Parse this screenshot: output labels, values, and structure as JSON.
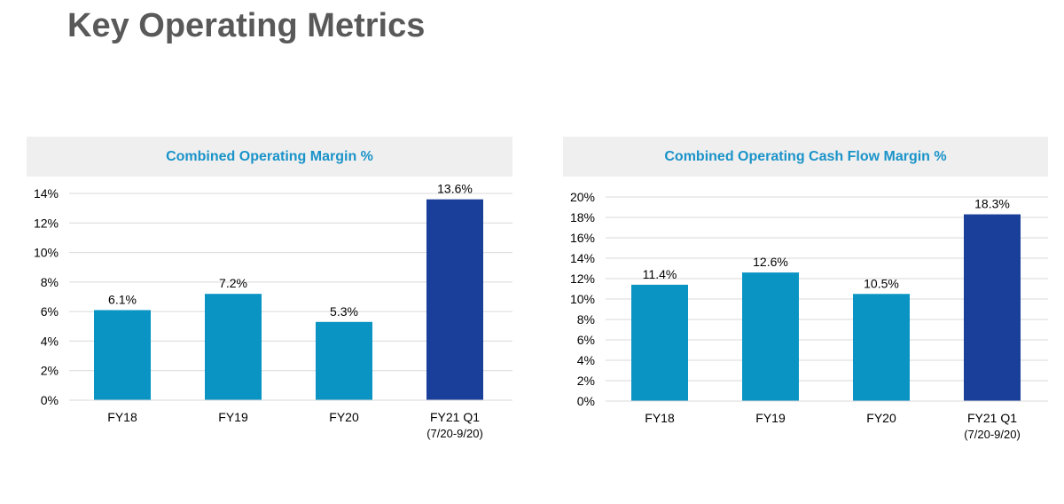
{
  "page": {
    "title": "Key Operating Metrics"
  },
  "colors": {
    "bar": "#0a94c4",
    "highlight": "#1a3f9a",
    "grid": "#d9d9d9",
    "header_bg": "#efefef",
    "header_text": "#1a93c9"
  },
  "chart_data": [
    {
      "type": "bar",
      "title": "Combined Operating Margin %",
      "categories": [
        "FY18",
        "FY19",
        "FY20",
        "FY21 Q1\n(7/20-9/20)"
      ],
      "values": [
        6.1,
        7.2,
        5.3,
        13.6
      ],
      "value_labels": [
        "6.1%",
        "7.2%",
        "5.3%",
        "13.6%"
      ],
      "ylim": [
        0,
        14
      ],
      "yticks": [
        "0%",
        "2%",
        "4%",
        "6%",
        "8%",
        "10%",
        "12%",
        "14%"
      ],
      "ytick_values": [
        0,
        2,
        4,
        6,
        8,
        10,
        12,
        14
      ],
      "highlight_index": 3,
      "grid": true
    },
    {
      "type": "bar",
      "title": "Combined Operating Cash Flow Margin %",
      "categories": [
        "FY18",
        "FY19",
        "FY20",
        "FY21 Q1\n(7/20-9/20)"
      ],
      "values": [
        11.4,
        12.6,
        10.5,
        18.3
      ],
      "value_labels": [
        "11.4%",
        "12.6%",
        "10.5%",
        "18.3%"
      ],
      "ylim": [
        0,
        20
      ],
      "yticks": [
        "0%",
        "2%",
        "4%",
        "6%",
        "8%",
        "10%",
        "12%",
        "14%",
        "16%",
        "18%",
        "20%"
      ],
      "ytick_values": [
        0,
        2,
        4,
        6,
        8,
        10,
        12,
        14,
        16,
        18,
        20
      ],
      "highlight_index": 3,
      "grid": true
    }
  ]
}
